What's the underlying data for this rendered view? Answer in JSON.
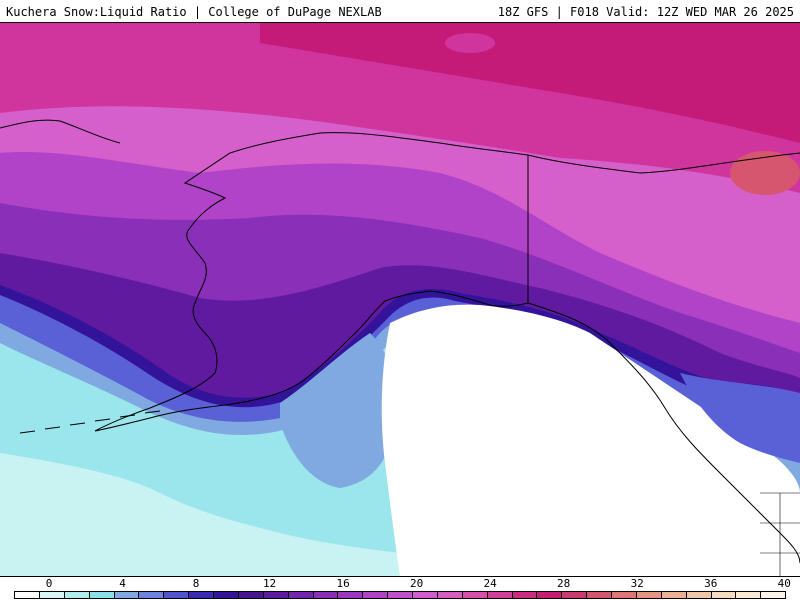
{
  "header": {
    "title": "Kuchera Snow:Liquid Ratio | College of DuPage NEXLAB",
    "run_info": "18Z GFS | F018 Valid: 12Z WED MAR 26 2025"
  },
  "legend": {
    "tick_labels": [
      "0",
      "4",
      "8",
      "12",
      "16",
      "20",
      "24",
      "28",
      "32",
      "36",
      "40"
    ],
    "tick_values": [
      0,
      4,
      8,
      12,
      16,
      20,
      24,
      28,
      32,
      36,
      40
    ],
    "range": [
      0,
      42
    ],
    "swatch_colors": [
      "#ffffff",
      "#d9f7f7",
      "#b0eeee",
      "#8ce0e8",
      "#7fa9e0",
      "#6c84dd",
      "#4f55cf",
      "#3a2ab8",
      "#33139a",
      "#4a138f",
      "#5f1aa0",
      "#7424ad",
      "#8a2fb8",
      "#9d36c0",
      "#b043c8",
      "#c24fcc",
      "#d35ed0",
      "#d85ec0",
      "#d950ac",
      "#d43e97",
      "#cd2a83",
      "#c61e72",
      "#cb3b6f",
      "#d5576f",
      "#de7775",
      "#e59580",
      "#ebb193",
      "#f0c8a8",
      "#f5dcc0",
      "#f9ead6",
      "#fdf4e8"
    ]
  },
  "colors": {
    "land_white": "#ffffff",
    "light_cyan": "#c9f3f3",
    "cyan": "#9be6ec",
    "light_blue": "#7fa9e0",
    "blue": "#5a60d6",
    "navy": "#33139a",
    "dark_purple": "#5b1aa0",
    "purple": "#7d2cb5",
    "violet": "#a33dc4",
    "orchid": "#c44fcc",
    "magenta_light": "#d35ec8",
    "magenta": "#d0359e",
    "deep_magenta": "#c41b78",
    "salmon": "#d6566f"
  }
}
